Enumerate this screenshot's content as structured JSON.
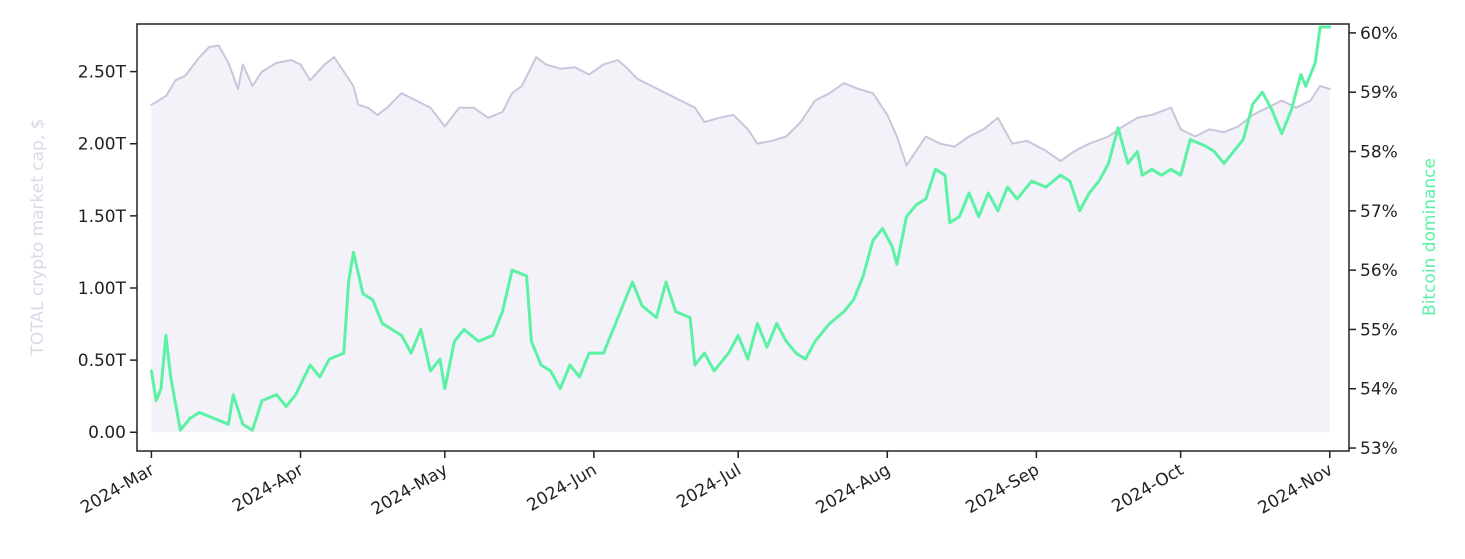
{
  "chart_data": {
    "type": "line",
    "title": "",
    "x_ticks": [
      "2024-Mar",
      "2024-Apr",
      "2024-May",
      "2024-Jun",
      "2024-Jul",
      "2024-Aug",
      "2024-Sep",
      "2024-Oct",
      "2024-Nov"
    ],
    "x_range": [
      "2024-02-27",
      "2024-11-05"
    ],
    "left_axis": {
      "label": "TOTAL crypto market cap, $",
      "label_color": "#dcd8ea",
      "range": [
        -0.13,
        2.83
      ],
      "ticks": [
        0,
        0.5,
        1.0,
        1.5,
        2.0,
        2.5
      ],
      "tick_labels": [
        "0.00",
        "0.50T",
        "1.00T",
        "1.50T",
        "2.00T",
        "2.50T"
      ]
    },
    "right_axis": {
      "label": "Bitcoin dominance",
      "label_color": "#5cf2a5",
      "range": [
        52.95,
        60.15
      ],
      "ticks": [
        53,
        54,
        55,
        56,
        57,
        58,
        59,
        60
      ],
      "tick_labels": [
        "53%",
        "54%",
        "55%",
        "56%",
        "57%",
        "58%",
        "59%",
        "60%"
      ]
    },
    "series": [
      {
        "name": "TOTAL crypto market cap, $",
        "axis": "left",
        "style": "area",
        "line_color": "#c9c6dc",
        "fill_color": "#f3f2f8",
        "unit": "T",
        "points": [
          [
            "2024-03-01",
            2.27
          ],
          [
            "2024-03-04",
            2.33
          ],
          [
            "2024-03-06",
            2.44
          ],
          [
            "2024-03-08",
            2.47
          ],
          [
            "2024-03-11",
            2.6
          ],
          [
            "2024-03-13",
            2.67
          ],
          [
            "2024-03-15",
            2.68
          ],
          [
            "2024-03-17",
            2.56
          ],
          [
            "2024-03-19",
            2.38
          ],
          [
            "2024-03-20",
            2.55
          ],
          [
            "2024-03-22",
            2.4
          ],
          [
            "2024-03-24",
            2.5
          ],
          [
            "2024-03-27",
            2.56
          ],
          [
            "2024-03-30",
            2.58
          ],
          [
            "2024-04-01",
            2.55
          ],
          [
            "2024-04-03",
            2.44
          ],
          [
            "2024-04-06",
            2.55
          ],
          [
            "2024-04-08",
            2.6
          ],
          [
            "2024-04-10",
            2.5
          ],
          [
            "2024-04-12",
            2.4
          ],
          [
            "2024-04-13",
            2.27
          ],
          [
            "2024-04-15",
            2.25
          ],
          [
            "2024-04-17",
            2.2
          ],
          [
            "2024-04-19",
            2.25
          ],
          [
            "2024-04-22",
            2.35
          ],
          [
            "2024-04-25",
            2.3
          ],
          [
            "2024-04-28",
            2.25
          ],
          [
            "2024-05-01",
            2.12
          ],
          [
            "2024-05-04",
            2.25
          ],
          [
            "2024-05-07",
            2.25
          ],
          [
            "2024-05-10",
            2.18
          ],
          [
            "2024-05-13",
            2.22
          ],
          [
            "2024-05-15",
            2.35
          ],
          [
            "2024-05-17",
            2.4
          ],
          [
            "2024-05-20",
            2.6
          ],
          [
            "2024-05-22",
            2.55
          ],
          [
            "2024-05-25",
            2.52
          ],
          [
            "2024-05-28",
            2.53
          ],
          [
            "2024-05-31",
            2.48
          ],
          [
            "2024-06-03",
            2.55
          ],
          [
            "2024-06-06",
            2.58
          ],
          [
            "2024-06-08",
            2.52
          ],
          [
            "2024-06-10",
            2.45
          ],
          [
            "2024-06-13",
            2.4
          ],
          [
            "2024-06-16",
            2.35
          ],
          [
            "2024-06-19",
            2.3
          ],
          [
            "2024-06-22",
            2.25
          ],
          [
            "2024-06-24",
            2.15
          ],
          [
            "2024-06-27",
            2.18
          ],
          [
            "2024-06-30",
            2.2
          ],
          [
            "2024-07-03",
            2.1
          ],
          [
            "2024-07-05",
            2.0
          ],
          [
            "2024-07-08",
            2.02
          ],
          [
            "2024-07-11",
            2.05
          ],
          [
            "2024-07-14",
            2.15
          ],
          [
            "2024-07-17",
            2.3
          ],
          [
            "2024-07-20",
            2.35
          ],
          [
            "2024-07-23",
            2.42
          ],
          [
            "2024-07-26",
            2.38
          ],
          [
            "2024-07-29",
            2.35
          ],
          [
            "2024-08-01",
            2.2
          ],
          [
            "2024-08-03",
            2.05
          ],
          [
            "2024-08-05",
            1.85
          ],
          [
            "2024-08-07",
            1.95
          ],
          [
            "2024-08-09",
            2.05
          ],
          [
            "2024-08-12",
            2.0
          ],
          [
            "2024-08-15",
            1.98
          ],
          [
            "2024-08-18",
            2.05
          ],
          [
            "2024-08-21",
            2.1
          ],
          [
            "2024-08-24",
            2.18
          ],
          [
            "2024-08-27",
            2.0
          ],
          [
            "2024-08-30",
            2.02
          ],
          [
            "2024-09-03",
            1.95
          ],
          [
            "2024-09-06",
            1.88
          ],
          [
            "2024-09-09",
            1.95
          ],
          [
            "2024-09-12",
            2.0
          ],
          [
            "2024-09-16",
            2.05
          ],
          [
            "2024-09-19",
            2.12
          ],
          [
            "2024-09-22",
            2.18
          ],
          [
            "2024-09-25",
            2.2
          ],
          [
            "2024-09-29",
            2.25
          ],
          [
            "2024-10-01",
            2.1
          ],
          [
            "2024-10-04",
            2.05
          ],
          [
            "2024-10-07",
            2.1
          ],
          [
            "2024-10-10",
            2.08
          ],
          [
            "2024-10-13",
            2.12
          ],
          [
            "2024-10-16",
            2.2
          ],
          [
            "2024-10-19",
            2.25
          ],
          [
            "2024-10-22",
            2.3
          ],
          [
            "2024-10-25",
            2.25
          ],
          [
            "2024-10-28",
            2.3
          ],
          [
            "2024-10-30",
            2.4
          ],
          [
            "2024-11-01",
            2.38
          ]
        ]
      },
      {
        "name": "Bitcoin dominance",
        "axis": "right",
        "style": "line",
        "line_color": "#5cf2a5",
        "unit": "%",
        "points": [
          [
            "2024-03-01",
            54.3
          ],
          [
            "2024-03-02",
            53.8
          ],
          [
            "2024-03-03",
            54.0
          ],
          [
            "2024-03-04",
            54.9
          ],
          [
            "2024-03-05",
            54.2
          ],
          [
            "2024-03-07",
            53.3
          ],
          [
            "2024-03-09",
            53.5
          ],
          [
            "2024-03-11",
            53.6
          ],
          [
            "2024-03-14",
            53.5
          ],
          [
            "2024-03-17",
            53.4
          ],
          [
            "2024-03-18",
            53.9
          ],
          [
            "2024-03-20",
            53.4
          ],
          [
            "2024-03-22",
            53.3
          ],
          [
            "2024-03-24",
            53.8
          ],
          [
            "2024-03-27",
            53.9
          ],
          [
            "2024-03-29",
            53.7
          ],
          [
            "2024-03-31",
            53.9
          ],
          [
            "2024-04-03",
            54.4
          ],
          [
            "2024-04-05",
            54.2
          ],
          [
            "2024-04-07",
            54.5
          ],
          [
            "2024-04-10",
            54.6
          ],
          [
            "2024-04-11",
            55.8
          ],
          [
            "2024-04-12",
            56.3
          ],
          [
            "2024-04-14",
            55.6
          ],
          [
            "2024-04-16",
            55.5
          ],
          [
            "2024-04-18",
            55.1
          ],
          [
            "2024-04-20",
            55.0
          ],
          [
            "2024-04-22",
            54.9
          ],
          [
            "2024-04-24",
            54.6
          ],
          [
            "2024-04-26",
            55.0
          ],
          [
            "2024-04-28",
            54.3
          ],
          [
            "2024-04-30",
            54.5
          ],
          [
            "2024-05-01",
            54.0
          ],
          [
            "2024-05-03",
            54.8
          ],
          [
            "2024-05-05",
            55.0
          ],
          [
            "2024-05-08",
            54.8
          ],
          [
            "2024-05-11",
            54.9
          ],
          [
            "2024-05-13",
            55.3
          ],
          [
            "2024-05-15",
            56.0
          ],
          [
            "2024-05-18",
            55.9
          ],
          [
            "2024-05-19",
            54.8
          ],
          [
            "2024-05-21",
            54.4
          ],
          [
            "2024-05-23",
            54.3
          ],
          [
            "2024-05-25",
            54.0
          ],
          [
            "2024-05-27",
            54.4
          ],
          [
            "2024-05-29",
            54.2
          ],
          [
            "2024-05-31",
            54.6
          ],
          [
            "2024-06-03",
            54.6
          ],
          [
            "2024-06-06",
            55.2
          ],
          [
            "2024-06-09",
            55.8
          ],
          [
            "2024-06-11",
            55.4
          ],
          [
            "2024-06-14",
            55.2
          ],
          [
            "2024-06-16",
            55.8
          ],
          [
            "2024-06-18",
            55.3
          ],
          [
            "2024-06-21",
            55.2
          ],
          [
            "2024-06-22",
            54.4
          ],
          [
            "2024-06-24",
            54.6
          ],
          [
            "2024-06-26",
            54.3
          ],
          [
            "2024-06-29",
            54.6
          ],
          [
            "2024-07-01",
            54.9
          ],
          [
            "2024-07-03",
            54.5
          ],
          [
            "2024-07-05",
            55.1
          ],
          [
            "2024-07-07",
            54.7
          ],
          [
            "2024-07-09",
            55.1
          ],
          [
            "2024-07-11",
            54.8
          ],
          [
            "2024-07-13",
            54.6
          ],
          [
            "2024-07-15",
            54.5
          ],
          [
            "2024-07-17",
            54.8
          ],
          [
            "2024-07-20",
            55.1
          ],
          [
            "2024-07-23",
            55.3
          ],
          [
            "2024-07-25",
            55.5
          ],
          [
            "2024-07-27",
            55.9
          ],
          [
            "2024-07-29",
            56.5
          ],
          [
            "2024-07-31",
            56.7
          ],
          [
            "2024-08-02",
            56.4
          ],
          [
            "2024-08-03",
            56.1
          ],
          [
            "2024-08-05",
            56.9
          ],
          [
            "2024-08-07",
            57.1
          ],
          [
            "2024-08-09",
            57.2
          ],
          [
            "2024-08-11",
            57.7
          ],
          [
            "2024-08-13",
            57.6
          ],
          [
            "2024-08-14",
            56.8
          ],
          [
            "2024-08-16",
            56.9
          ],
          [
            "2024-08-18",
            57.3
          ],
          [
            "2024-08-20",
            56.9
          ],
          [
            "2024-08-22",
            57.3
          ],
          [
            "2024-08-24",
            57.0
          ],
          [
            "2024-08-26",
            57.4
          ],
          [
            "2024-08-28",
            57.2
          ],
          [
            "2024-08-31",
            57.5
          ],
          [
            "2024-09-03",
            57.4
          ],
          [
            "2024-09-06",
            57.6
          ],
          [
            "2024-09-08",
            57.5
          ],
          [
            "2024-09-10",
            57.0
          ],
          [
            "2024-09-12",
            57.3
          ],
          [
            "2024-09-14",
            57.5
          ],
          [
            "2024-09-16",
            57.8
          ],
          [
            "2024-09-18",
            58.4
          ],
          [
            "2024-09-20",
            57.8
          ],
          [
            "2024-09-22",
            58.0
          ],
          [
            "2024-09-23",
            57.6
          ],
          [
            "2024-09-25",
            57.7
          ],
          [
            "2024-09-27",
            57.6
          ],
          [
            "2024-09-29",
            57.7
          ],
          [
            "2024-10-01",
            57.6
          ],
          [
            "2024-10-03",
            58.2
          ],
          [
            "2024-10-06",
            58.1
          ],
          [
            "2024-10-08",
            58.0
          ],
          [
            "2024-10-10",
            57.8
          ],
          [
            "2024-10-12",
            58.0
          ],
          [
            "2024-10-14",
            58.2
          ],
          [
            "2024-10-16",
            58.8
          ],
          [
            "2024-10-18",
            59.0
          ],
          [
            "2024-10-20",
            58.7
          ],
          [
            "2024-10-22",
            58.3
          ],
          [
            "2024-10-24",
            58.7
          ],
          [
            "2024-10-26",
            59.3
          ],
          [
            "2024-10-27",
            59.1
          ],
          [
            "2024-10-29",
            59.5
          ],
          [
            "2024-10-30",
            60.1
          ],
          [
            "2024-11-01",
            60.1
          ]
        ]
      }
    ],
    "grid": false,
    "legend": "none"
  }
}
